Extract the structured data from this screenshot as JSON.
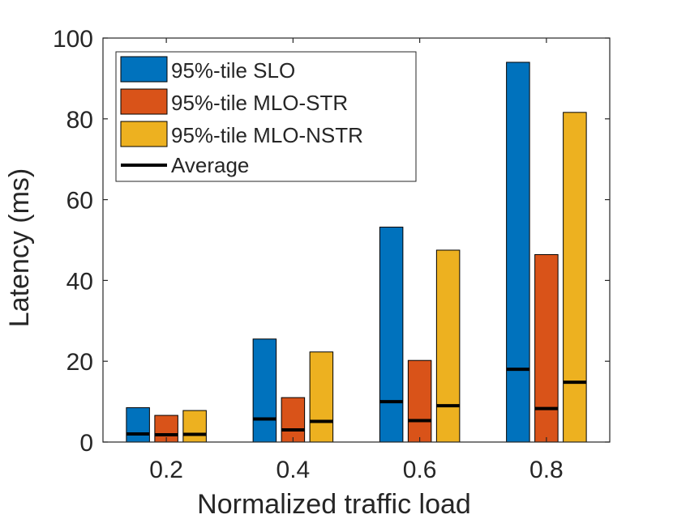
{
  "chart_data": {
    "type": "bar",
    "xlabel": "Normalized traffic load",
    "ylabel": "Latency (ms)",
    "ylim": [
      0,
      100
    ],
    "yticks": [
      0,
      20,
      40,
      60,
      80,
      100
    ],
    "categories": [
      "0.2",
      "0.4",
      "0.6",
      "0.8"
    ],
    "series": [
      {
        "name": "95%-tile SLO",
        "color": "#0072BD",
        "values": [
          8.5,
          25.5,
          53.2,
          94.0
        ],
        "average": [
          2.0,
          5.7,
          10.0,
          18.0
        ]
      },
      {
        "name": "95%-tile MLO-STR",
        "color": "#D95319",
        "values": [
          6.6,
          11.0,
          20.2,
          46.4
        ],
        "average": [
          1.8,
          3.0,
          5.3,
          8.3
        ]
      },
      {
        "name": "95%-tile MLO-NSTR",
        "color": "#EDB120",
        "values": [
          7.8,
          22.3,
          47.5,
          81.6
        ],
        "average": [
          1.9,
          5.1,
          9.0,
          14.8
        ]
      }
    ],
    "average_label": "Average",
    "average_color": "#000000",
    "legend_position": "top-left"
  }
}
